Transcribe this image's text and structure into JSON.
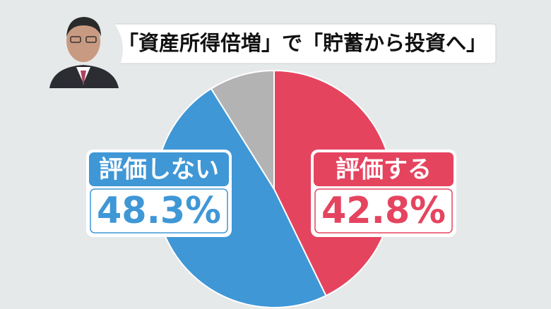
{
  "chart_data": {
    "type": "pie",
    "title": "「資産所得倍増」で「貯蓄から投資へ」",
    "categories": [
      "評価する",
      "評価しない",
      null
    ],
    "values": [
      42.8,
      48.3,
      8.9
    ],
    "value_labels": [
      "42.8%",
      "48.3%",
      null
    ],
    "colors": [
      "#e5445f",
      "#3f97d6",
      "#b3b3b3"
    ]
  }
}
